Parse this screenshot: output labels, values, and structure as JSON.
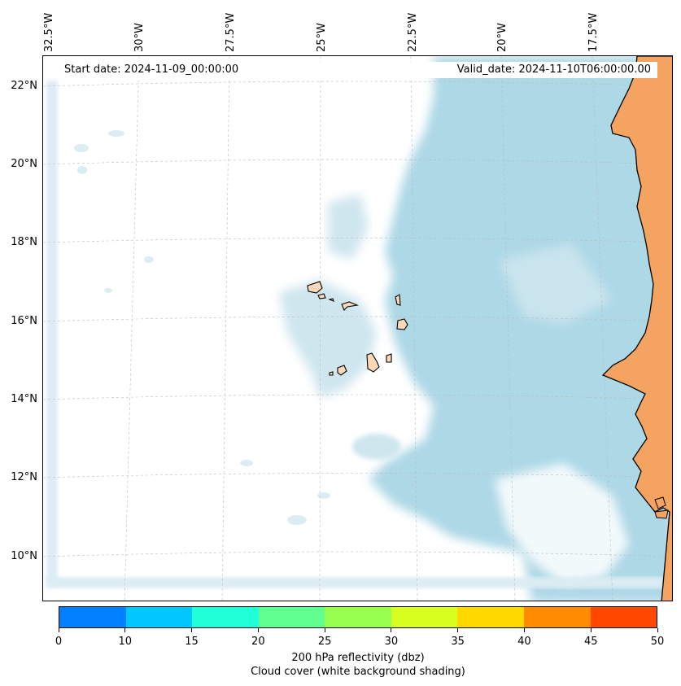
{
  "header": {
    "start_date": "Start date: 2024-11-09_00:00:00",
    "valid_date": "Valid_date: 2024-11-10T06:00:00.00"
  },
  "map": {
    "lon_labels": [
      "32.5°W",
      "30°W",
      "27.5°W",
      "25°W",
      "22.5°W",
      "20°W",
      "17.5°W"
    ],
    "lat_labels": [
      "22°N",
      "20°N",
      "18°N",
      "16°N",
      "14°N",
      "12°N",
      "10°N"
    ],
    "colors": {
      "cloud": "#add8e6",
      "mainland": "#f4a460",
      "islands": "#fcd8b8",
      "coastline": "#000000",
      "gridline": "#bbbbbb"
    }
  },
  "colorbar": {
    "ticks": [
      "0",
      "10",
      "15",
      "20",
      "25",
      "30",
      "35",
      "40",
      "45",
      "50"
    ],
    "colors": [
      "#0080ff",
      "#00c8ff",
      "#20ffd8",
      "#60ff90",
      "#98ff50",
      "#d8ff20",
      "#ffd800",
      "#ff8c00",
      "#ff4800"
    ],
    "title": "200 hPa reflectivity (dbz)",
    "subtitle": "Cloud cover (white background shading)"
  }
}
